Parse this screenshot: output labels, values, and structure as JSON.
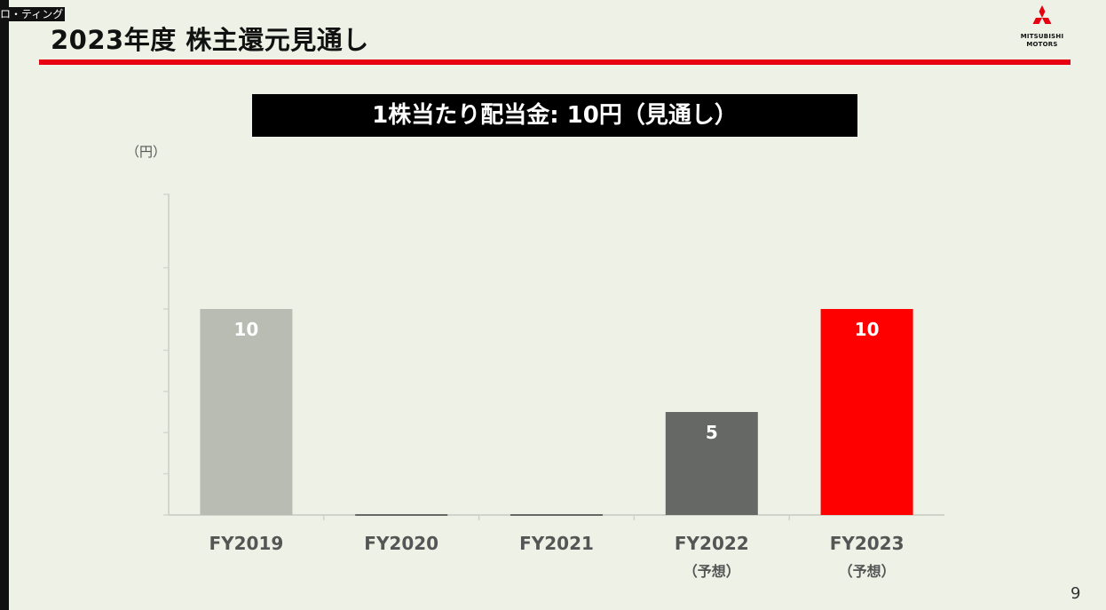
{
  "overlay_label": "ロ・ティング",
  "slide": {
    "title": "2023年度 株主還元見通し",
    "banner": "1株当たり配当金: 10円（見通し）",
    "page_number": "9"
  },
  "logo": {
    "icon": "three-diamonds-logo",
    "line1": "MITSUBISHI",
    "line2": "MOTORS",
    "color": "#e60012"
  },
  "chart_data": {
    "type": "bar",
    "ylabel": "（円）",
    "ylim": [
      0,
      14
    ],
    "grid": false,
    "categories": [
      "FY2019",
      "FY2020",
      "FY2021",
      "FY2022",
      "FY2023"
    ],
    "category_notes": [
      "",
      "",
      "",
      "（予想）",
      "（予想）"
    ],
    "values": [
      10,
      0,
      0,
      5,
      10
    ],
    "data_labels": [
      "10",
      "",
      "",
      "5",
      "10"
    ],
    "colors": [
      "#b8bcb3",
      "#666866",
      "#666866",
      "#656865",
      "#ff0000"
    ]
  }
}
